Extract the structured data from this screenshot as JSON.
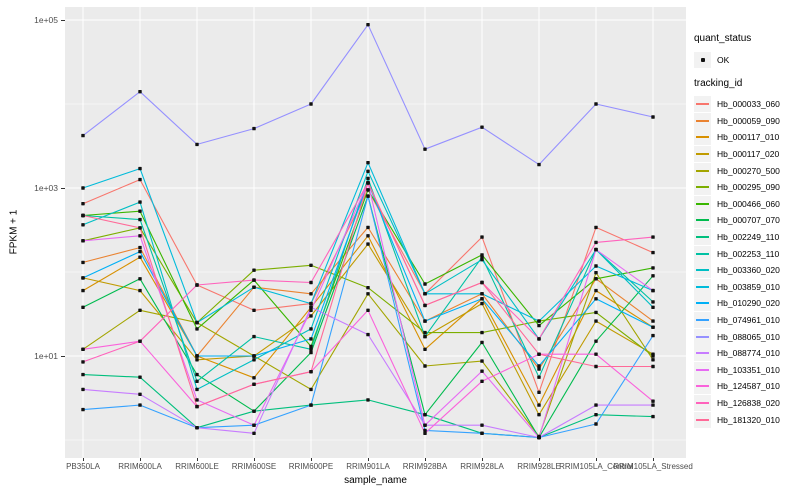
{
  "figure": {
    "background": "#ffffff",
    "panel_background": "#ebebeb",
    "grid_color": "#ffffff",
    "point_color": "#111111"
  },
  "axes": {
    "y": {
      "label": "FPKM + 1",
      "ticks": [
        {
          "label": "1e+05",
          "log10": 5
        },
        {
          "label": "1e+03",
          "log10": 3
        },
        {
          "label": "1e+01",
          "log10": 1
        }
      ]
    },
    "x": {
      "label": "sample_name"
    }
  },
  "legend": {
    "quant_status": {
      "title": "quant_status",
      "items": [
        {
          "label": "OK",
          "symbol": "black-point"
        }
      ]
    },
    "tracking_id": {
      "title": "tracking_id"
    }
  },
  "chart_data": {
    "type": "line",
    "title": "",
    "xlabel": "sample_name",
    "ylabel": "FPKM + 1",
    "y_scale": "log10",
    "ylim": [
      1,
      160000
    ],
    "grid": true,
    "legend_position": "right",
    "marker": "small-black-square",
    "categories": [
      "PB350LA",
      "RRIM600LA",
      "RRIM600LE",
      "RRIM600SE",
      "RRIM600PE",
      "RRIM901LA",
      "RRIM928BA",
      "RRIM928LA",
      "RRIM928LE",
      "RRIM105LA_Control",
      "RRIM105LA_Stressed"
    ],
    "series": [
      {
        "name": "Hb_000033_060",
        "color": "#F8766D",
        "values": [
          650,
          1260,
          70,
          35,
          42,
          950,
          55,
          260,
          3.7,
          340,
          170
        ]
      },
      {
        "name": "Hb_000059_090",
        "color": "#EA8331",
        "values": [
          130,
          195,
          10,
          66,
          55,
          340,
          26,
          55,
          7,
          83,
          26
        ]
      },
      {
        "name": "Hb_000117_010",
        "color": "#D89000",
        "values": [
          60,
          150,
          10,
          5.5,
          38,
          270,
          12,
          48,
          2.6,
          60,
          22
        ]
      },
      {
        "name": "Hb_000117_020",
        "color": "#C09B00",
        "values": [
          85,
          60,
          9,
          10,
          30,
          215,
          17,
          42,
          2,
          26,
          10.5
        ]
      },
      {
        "name": "Hb_000270_500",
        "color": "#A3A500",
        "values": [
          12,
          35,
          25,
          10,
          4,
          55,
          7.6,
          8.7,
          1.1,
          98,
          9
        ]
      },
      {
        "name": "Hb_000295_090",
        "color": "#7CAE00",
        "values": [
          235,
          335,
          25,
          105,
          120,
          65,
          19,
          19,
          26,
          33,
          10
        ]
      },
      {
        "name": "Hb_000466_060",
        "color": "#39B600",
        "values": [
          470,
          530,
          21,
          80,
          13,
          950,
          72,
          160,
          23,
          83,
          112
        ]
      },
      {
        "name": "Hb_000707_070",
        "color": "#00BB4E",
        "values": [
          38,
          83,
          6,
          2.2,
          11,
          800,
          2,
          14.5,
          1.07,
          15,
          90
        ]
      },
      {
        "name": "Hb_002249_110",
        "color": "#00BF7D",
        "values": [
          6,
          5.6,
          1.4,
          2.2,
          2.6,
          3,
          2,
          1.2,
          1.07,
          2,
          1.9
        ]
      },
      {
        "name": "Hb_002253_110",
        "color": "#00C1A3",
        "values": [
          470,
          420,
          5,
          17,
          12,
          1300,
          17,
          150,
          5.6,
          185,
          44
        ]
      },
      {
        "name": "Hb_003360_020",
        "color": "#00BFC4",
        "values": [
          365,
          680,
          4,
          9,
          21,
          1580,
          55,
          140,
          16,
          185,
          38
        ]
      },
      {
        "name": "Hb_003859_010",
        "color": "#00BBDA",
        "values": [
          1000,
          1700,
          25,
          66,
          42,
          2000,
          55,
          55,
          26,
          118,
          60
        ]
      },
      {
        "name": "Hb_010290_020",
        "color": "#00B0F6",
        "values": [
          85,
          175,
          10,
          10,
          16,
          1150,
          26,
          48,
          7.6,
          48,
          22
        ]
      },
      {
        "name": "Hb_074961_010",
        "color": "#35A2FF",
        "values": [
          2.3,
          2.6,
          1.4,
          1.5,
          2.6,
          800,
          1.3,
          1.2,
          1.07,
          1.55,
          17.5
        ]
      },
      {
        "name": "Hb_088065_010",
        "color": "#9590FF",
        "values": [
          4200,
          14000,
          3300,
          5100,
          10000,
          88000,
          2900,
          5300,
          1900,
          10000,
          7000
        ]
      },
      {
        "name": "Hb_088774_010",
        "color": "#C77CFF",
        "values": [
          4,
          3.5,
          1.4,
          1.2,
          38,
          18,
          1.5,
          1.5,
          1.07,
          2.6,
          2.6
        ]
      },
      {
        "name": "Hb_103351_010",
        "color": "#E76BF3",
        "values": [
          235,
          270,
          3,
          1.5,
          35,
          1150,
          1.5,
          6.6,
          1.07,
          185,
          60
        ]
      },
      {
        "name": "Hb_124587_010",
        "color": "#FA62DB",
        "values": [
          12,
          15,
          2.5,
          4.6,
          6.5,
          35,
          1.2,
          5,
          10.5,
          10.5,
          2.9
        ]
      },
      {
        "name": "Hb_126838_020",
        "color": "#FF62BC",
        "values": [
          8.5,
          15,
          70,
          80,
          75,
          1150,
          40,
          75,
          16,
          225,
          260
        ]
      },
      {
        "name": "Hb_181320_010",
        "color": "#FF6A98",
        "values": [
          470,
          335,
          2.5,
          4.6,
          6.5,
          1150,
          40,
          75,
          10.5,
          7.5,
          7.5
        ]
      }
    ]
  }
}
